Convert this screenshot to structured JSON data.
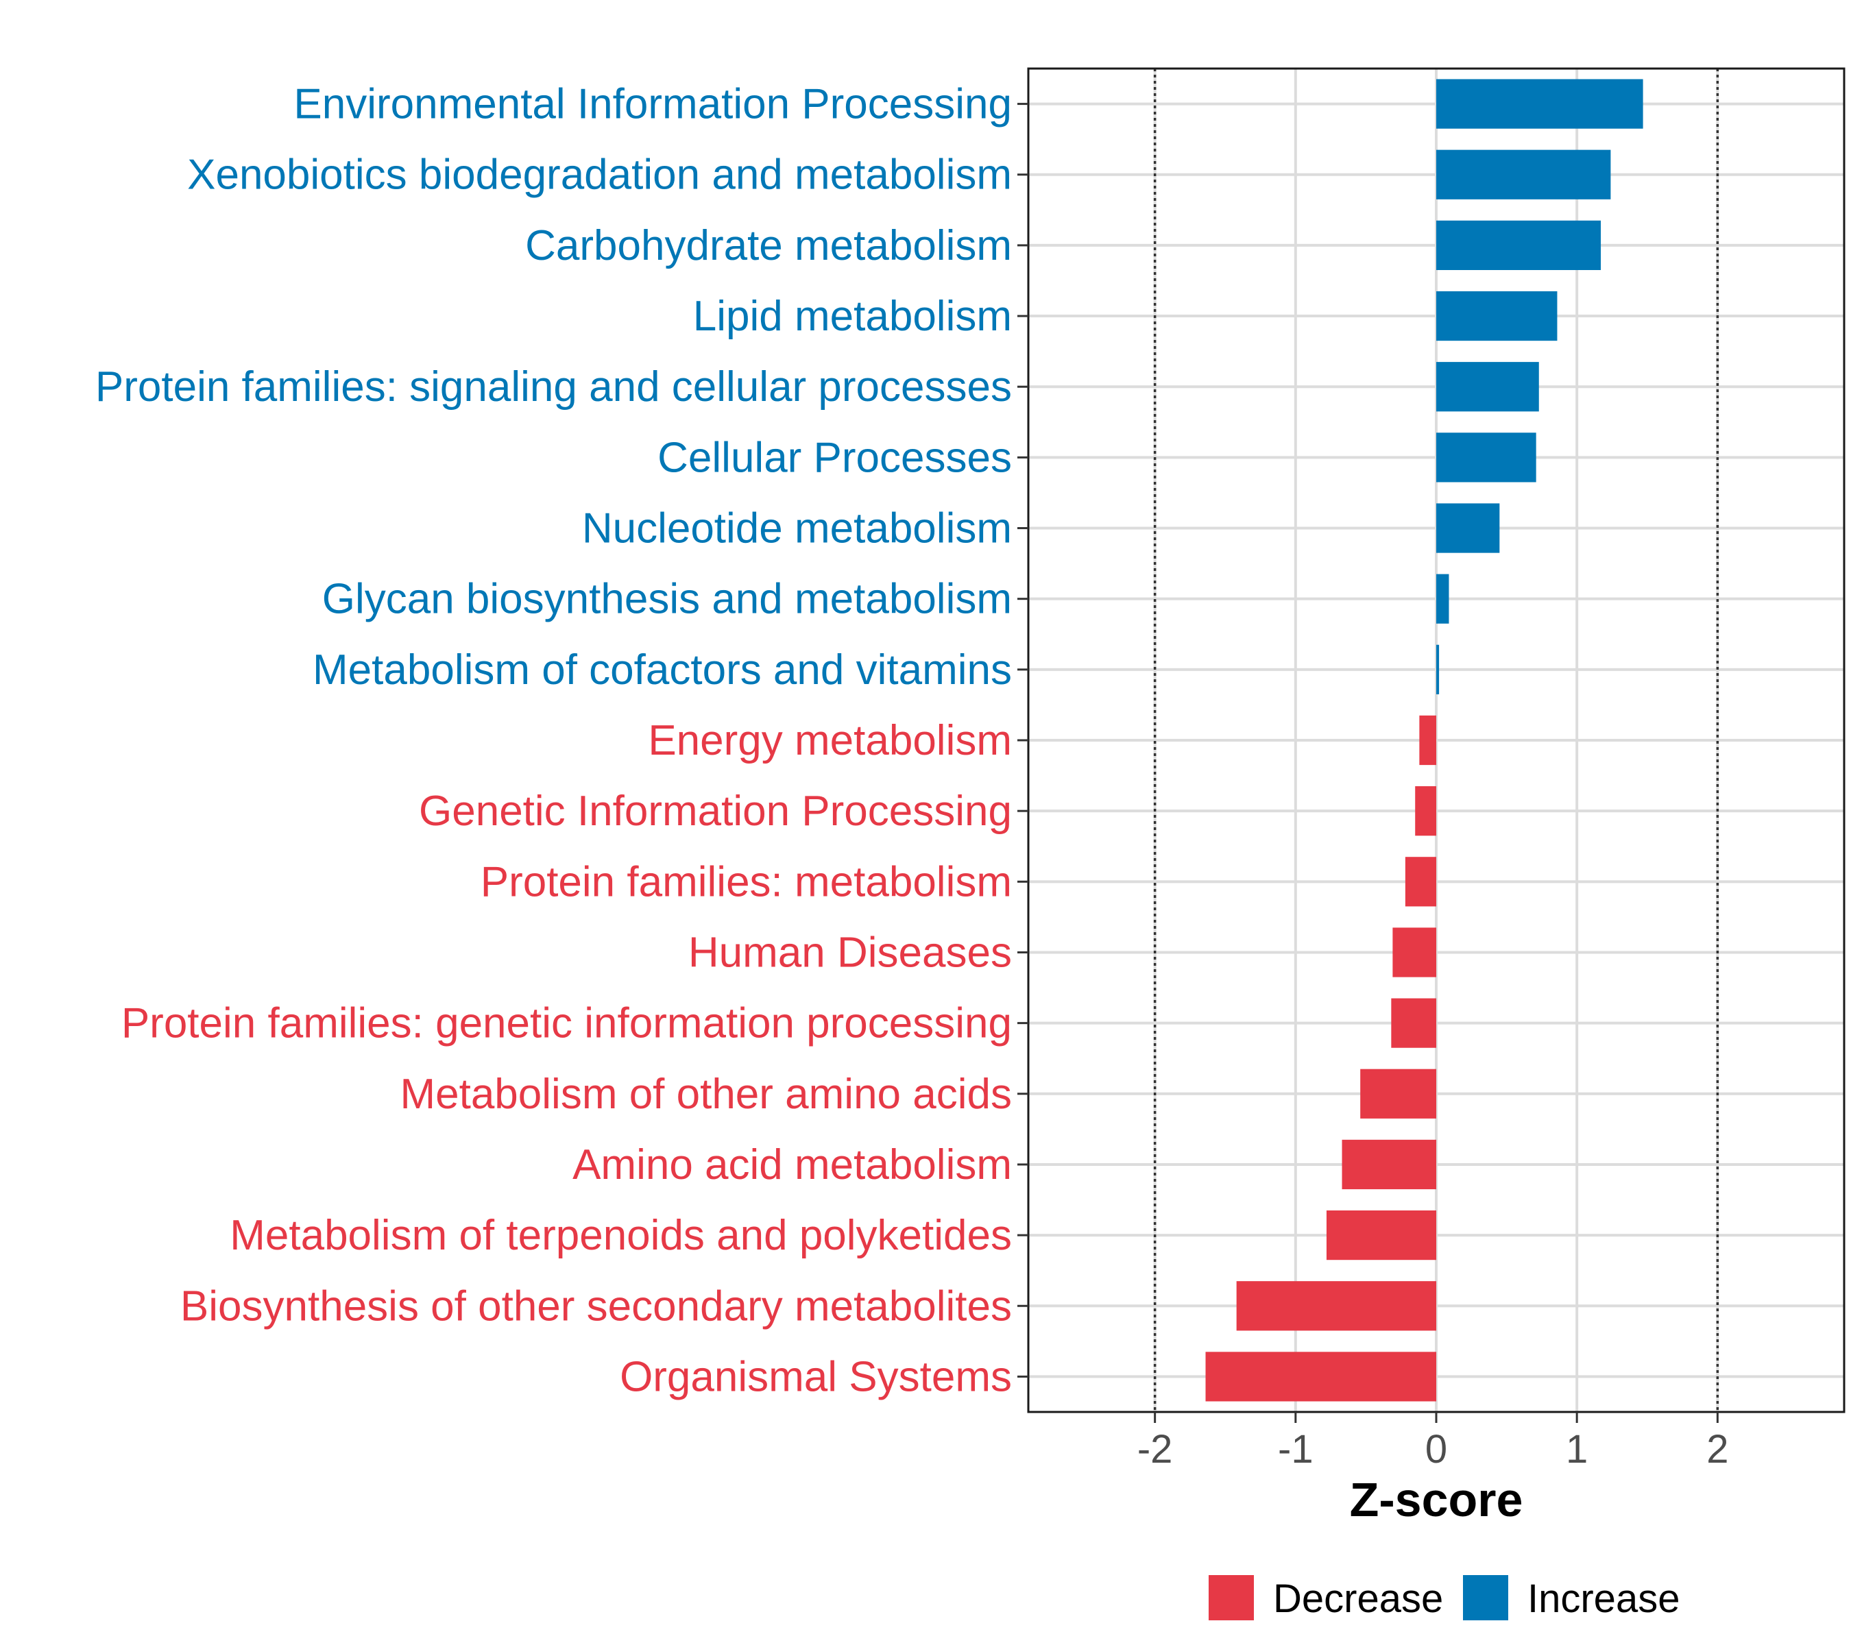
{
  "chart_data": {
    "type": "bar",
    "orientation": "horizontal",
    "title": "",
    "xlabel": "Z-score",
    "ylabel": "",
    "xlim": [
      -2.9,
      2.9
    ],
    "xticks": [
      -2,
      -1,
      0,
      1,
      2
    ],
    "xtick_labels": [
      "-2",
      "-1",
      "0",
      "1",
      "2"
    ],
    "reference_lines": [
      -2,
      2
    ],
    "grid": true,
    "colors": {
      "Decrease": "#E63946",
      "Increase": "#0077B6"
    },
    "categories": [
      "Environmental Information Processing",
      "Xenobiotics biodegradation and metabolism",
      "Carbohydrate metabolism",
      "Lipid metabolism",
      "Protein families: signaling and cellular processes",
      "Cellular Processes",
      "Nucleotide metabolism",
      "Glycan biosynthesis and metabolism",
      "Metabolism of cofactors and vitamins",
      "Energy metabolism",
      "Genetic Information Processing",
      "Protein families: metabolism",
      "Human Diseases",
      "Protein families: genetic information processing",
      "Metabolism of other amino acids",
      "Amino acid metabolism",
      "Metabolism of terpenoids and polyketides",
      "Biosynthesis of other secondary metabolites",
      "Organismal Systems"
    ],
    "values": [
      1.47,
      1.24,
      1.17,
      0.86,
      0.73,
      0.71,
      0.45,
      0.09,
      0.02,
      -0.12,
      -0.15,
      -0.22,
      -0.31,
      -0.32,
      -0.54,
      -0.67,
      -0.78,
      -1.42,
      -1.64
    ],
    "groups": [
      "Increase",
      "Increase",
      "Increase",
      "Increase",
      "Increase",
      "Increase",
      "Increase",
      "Increase",
      "Increase",
      "Decrease",
      "Decrease",
      "Decrease",
      "Decrease",
      "Decrease",
      "Decrease",
      "Decrease",
      "Decrease",
      "Decrease",
      "Decrease"
    ],
    "legend": {
      "position": "bottom",
      "entries": [
        {
          "label": "Decrease",
          "color": "#E63946"
        },
        {
          "label": "Increase",
          "color": "#0077B6"
        }
      ]
    }
  }
}
